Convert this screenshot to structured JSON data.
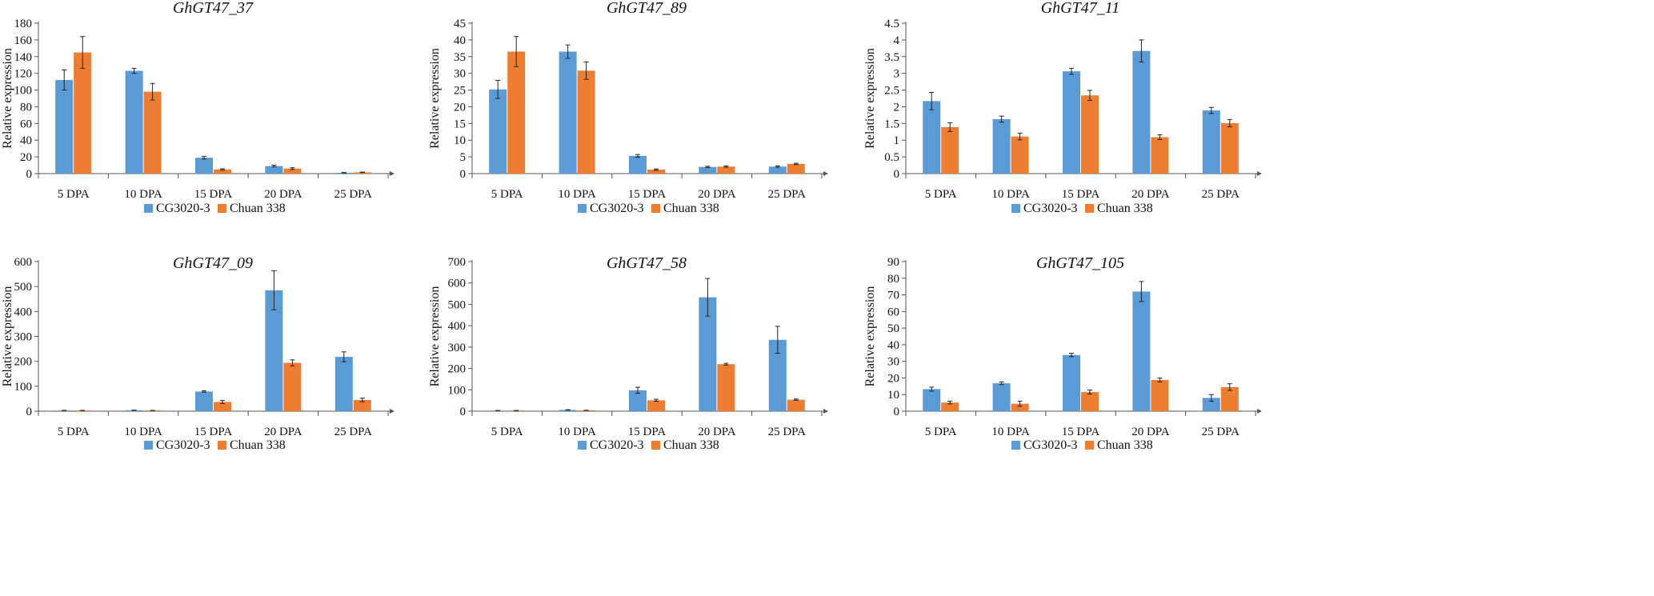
{
  "colors": {
    "series_1": "#5b9bd5",
    "series_2": "#ed7d31",
    "axis": "#555555",
    "error": "#222222"
  },
  "chart_data": [
    {
      "type": "bar",
      "title": "GhGT47_37",
      "xlabel": "",
      "ylabel": "Relative expression",
      "categories": [
        "5 DPA",
        "10 DPA",
        "15 DPA",
        "20 DPA",
        "25 DPA"
      ],
      "ylim": [
        0,
        180
      ],
      "yticks": [
        0,
        20,
        40,
        60,
        80,
        100,
        120,
        140,
        160,
        180
      ],
      "series": [
        {
          "name": "CG3020-3",
          "values": [
            112,
            123,
            19,
            9,
            1
          ],
          "errors": [
            12,
            3,
            1.5,
            1,
            0.3
          ]
        },
        {
          "name": "Chuan 338",
          "values": [
            145,
            98,
            5,
            6,
            1.5
          ],
          "errors": [
            19,
            10,
            0.8,
            1,
            0.3
          ]
        }
      ]
    },
    {
      "type": "bar",
      "title": "GhGT47_89",
      "xlabel": "",
      "ylabel": "Relative expression",
      "categories": [
        "5 DPA",
        "10 DPA",
        "15 DPA",
        "20 DPA",
        "25 DPA"
      ],
      "ylim": [
        0,
        45
      ],
      "yticks": [
        0,
        5,
        10,
        15,
        20,
        25,
        30,
        35,
        40,
        45
      ],
      "series": [
        {
          "name": "CG3020-3",
          "values": [
            25.2,
            36.5,
            5.3,
            2,
            2.1
          ],
          "errors": [
            2.7,
            2,
            0.4,
            0.2,
            0.2
          ]
        },
        {
          "name": "Chuan 338",
          "values": [
            36.5,
            30.8,
            1.2,
            2.1,
            2.9
          ],
          "errors": [
            4.5,
            2.6,
            0.2,
            0.2,
            0.2
          ]
        }
      ]
    },
    {
      "type": "bar",
      "title": "GhGT47_11",
      "xlabel": "",
      "ylabel": "Relative expression",
      "categories": [
        "5 DPA",
        "10 DPA",
        "15 DPA",
        "20 DPA",
        "25 DPA"
      ],
      "ylim": [
        0,
        4.5
      ],
      "yticks": [
        0,
        0.5,
        1,
        1.5,
        2,
        2.5,
        3,
        3.5,
        4,
        4.5
      ],
      "series": [
        {
          "name": "CG3020-3",
          "values": [
            2.17,
            1.63,
            3.06,
            3.67,
            1.89
          ],
          "errors": [
            0.26,
            0.09,
            0.09,
            0.33,
            0.09
          ]
        },
        {
          "name": "Chuan 338",
          "values": [
            1.39,
            1.11,
            2.34,
            1.09,
            1.51
          ],
          "errors": [
            0.13,
            0.1,
            0.15,
            0.07,
            0.11
          ]
        }
      ]
    },
    {
      "type": "bar",
      "title": "GhGT47_09",
      "xlabel": "",
      "ylabel": "Relative expression",
      "categories": [
        "5 DPA",
        "10 DPA",
        "15 DPA",
        "20 DPA",
        "25 DPA"
      ],
      "ylim": [
        0,
        600
      ],
      "yticks": [
        0,
        100,
        200,
        300,
        400,
        500,
        600
      ],
      "series": [
        {
          "name": "CG3020-3",
          "values": [
            3,
            4,
            79,
            485,
            218
          ],
          "errors": [
            0.5,
            0.5,
            3,
            78,
            20
          ]
        },
        {
          "name": "Chuan 338",
          "values": [
            3,
            3,
            37,
            194,
            45
          ],
          "errors": [
            0.5,
            0.5,
            6,
            12,
            7
          ]
        }
      ]
    },
    {
      "type": "bar",
      "title": "GhGT47_58",
      "xlabel": "",
      "ylabel": "Relative expression",
      "categories": [
        "5 DPA",
        "10 DPA",
        "15 DPA",
        "20 DPA",
        "25 DPA"
      ],
      "ylim": [
        0,
        700
      ],
      "yticks": [
        0,
        100,
        200,
        300,
        400,
        500,
        600,
        700
      ],
      "series": [
        {
          "name": "CG3020-3",
          "values": [
            3,
            6,
            98,
            533,
            334
          ],
          "errors": [
            0.5,
            1,
            14,
            88,
            63
          ]
        },
        {
          "name": "Chuan 338",
          "values": [
            3,
            4,
            51,
            220,
            54
          ],
          "errors": [
            0.5,
            0.5,
            5,
            4,
            3
          ]
        }
      ]
    },
    {
      "type": "bar",
      "title": "GhGT47_105",
      "xlabel": "",
      "ylabel": "Relative expression",
      "categories": [
        "5 DPA",
        "10 DPA",
        "15 DPA",
        "20 DPA",
        "25 DPA"
      ],
      "ylim": [
        0,
        90
      ],
      "yticks": [
        0,
        10,
        20,
        30,
        40,
        50,
        60,
        70,
        80,
        90
      ],
      "series": [
        {
          "name": "CG3020-3",
          "values": [
            13.3,
            16.8,
            33.8,
            72,
            8
          ],
          "errors": [
            1.2,
            0.8,
            1,
            6,
            2
          ]
        },
        {
          "name": "Chuan 338",
          "values": [
            5.2,
            4.5,
            11.5,
            18.8,
            14.5
          ],
          "errors": [
            0.8,
            1.5,
            1.2,
            1.2,
            2
          ]
        }
      ]
    }
  ]
}
